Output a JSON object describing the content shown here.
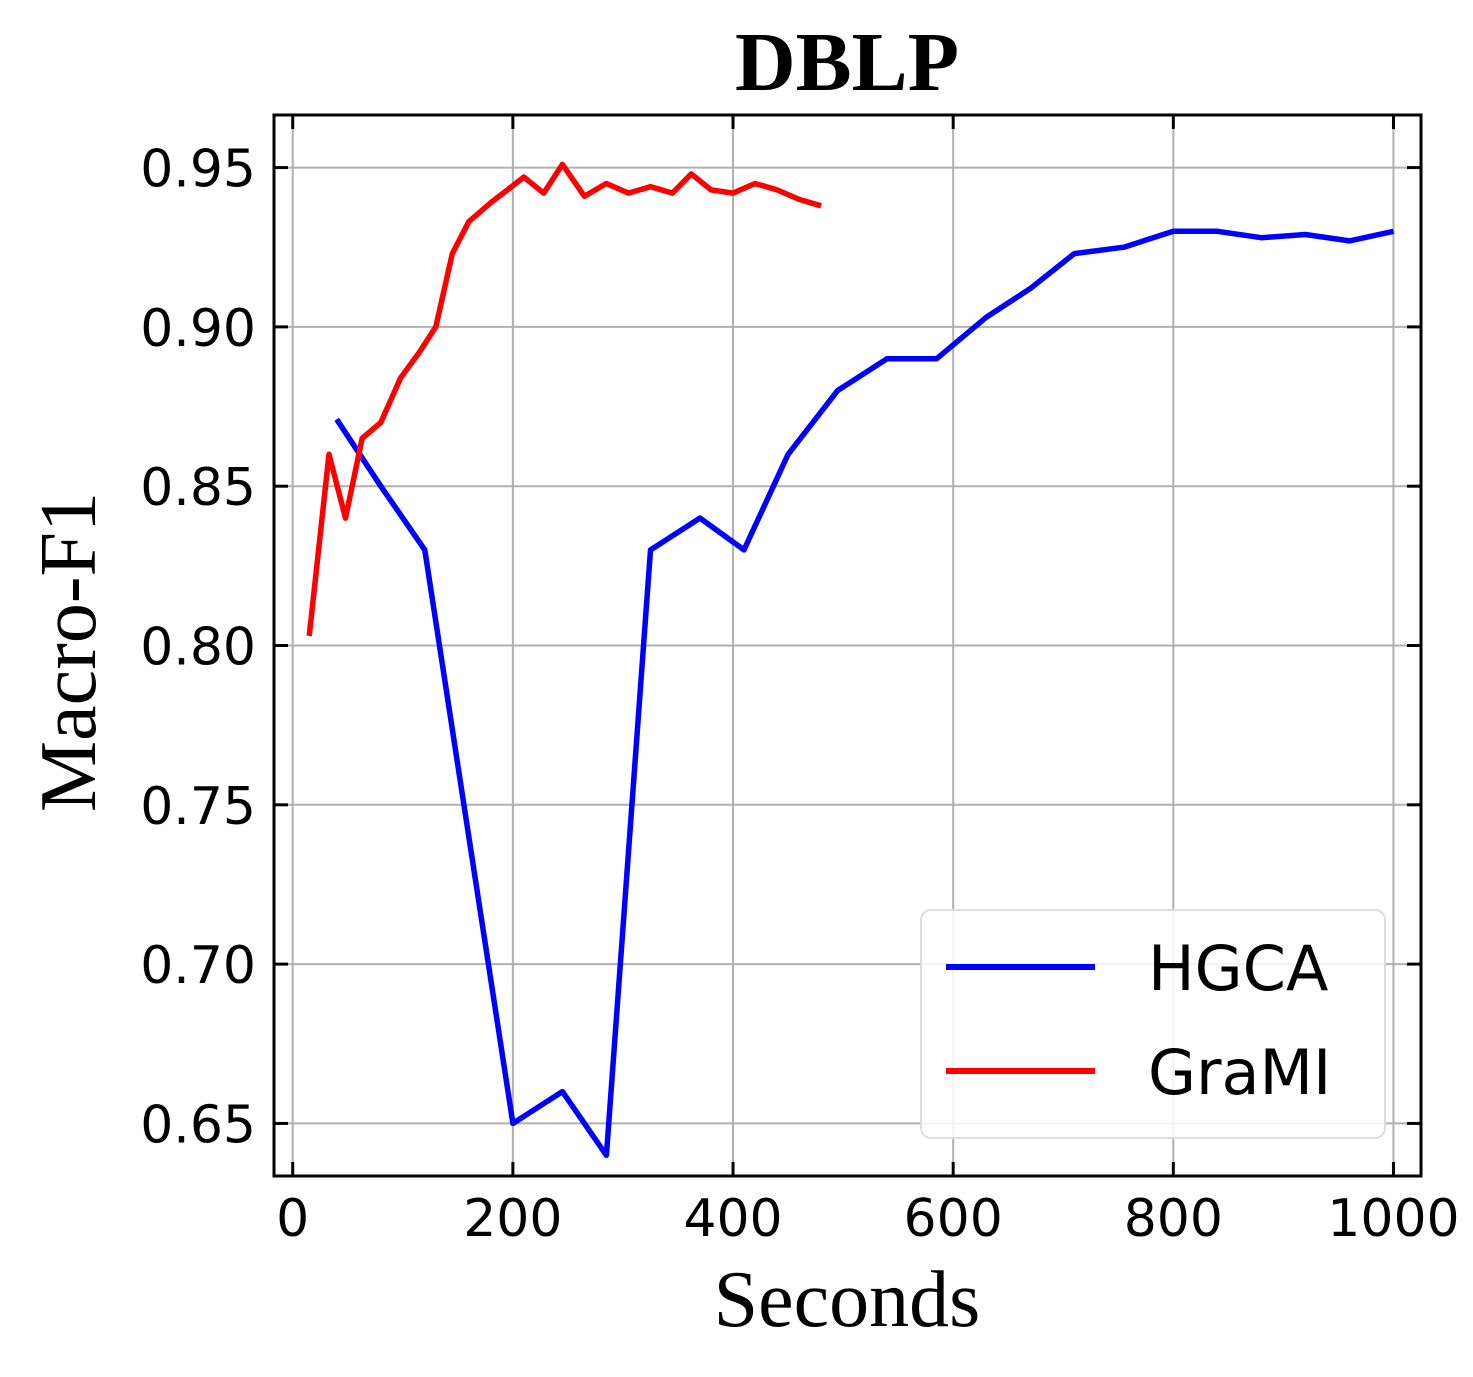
{
  "chart_data": {
    "type": "line",
    "title": "DBLP",
    "xlabel": "Seconds",
    "ylabel": "Macro-F1",
    "xlim": [
      -17,
      1025
    ],
    "ylim": [
      0.6335,
      0.9665
    ],
    "xticks": [
      0,
      200,
      400,
      600,
      800,
      1000
    ],
    "xtick_labels": [
      "0",
      "200",
      "400",
      "600",
      "800",
      "1000"
    ],
    "yticks": [
      0.65,
      0.7,
      0.75,
      0.8,
      0.85,
      0.9,
      0.95
    ],
    "ytick_labels": [
      "0.65",
      "0.70",
      "0.75",
      "0.80",
      "0.85",
      "0.90",
      "0.95"
    ],
    "grid": true,
    "legend_position": "bottom-right",
    "series": [
      {
        "name": "HGCA",
        "color": "#0000ff",
        "x": [
          40,
          80,
          120,
          160,
          200,
          245,
          285,
          325,
          370,
          410,
          450,
          495,
          540,
          585,
          630,
          670,
          710,
          755,
          800,
          840,
          880,
          920,
          960,
          1000
        ],
        "y": [
          0.871,
          0.85,
          0.83,
          0.74,
          0.65,
          0.66,
          0.64,
          0.83,
          0.84,
          0.83,
          0.86,
          0.88,
          0.89,
          0.89,
          0.903,
          0.912,
          0.923,
          0.925,
          0.93,
          0.93,
          0.928,
          0.929,
          0.927,
          0.93
        ]
      },
      {
        "name": "GraMI",
        "color": "#ff0000",
        "x": [
          15,
          33,
          48,
          63,
          80,
          98,
          115,
          130,
          145,
          160,
          180,
          195,
          210,
          228,
          245,
          265,
          285,
          305,
          325,
          345,
          362,
          380,
          400,
          420,
          440,
          460,
          480
        ],
        "y": [
          0.803,
          0.86,
          0.84,
          0.865,
          0.87,
          0.884,
          0.892,
          0.9,
          0.923,
          0.933,
          0.939,
          0.943,
          0.947,
          0.942,
          0.951,
          0.941,
          0.945,
          0.942,
          0.944,
          0.942,
          0.948,
          0.943,
          0.942,
          0.945,
          0.943,
          0.94,
          0.938
        ]
      }
    ]
  }
}
